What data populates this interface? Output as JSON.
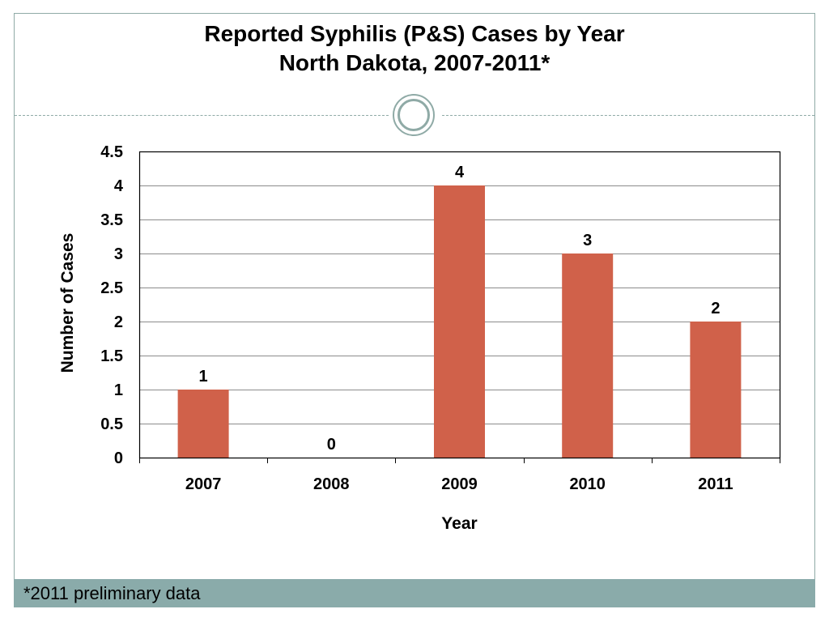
{
  "slide": {
    "title_line1": "Reported Syphilis (P&S) Cases by Year",
    "title_line2": "North Dakota, 2007-2011*",
    "footnote": "*2011 preliminary data"
  },
  "colors": {
    "bar": "#d0614a",
    "frame": "#8faaa6",
    "footer_bar": "#8aabaa"
  },
  "chart_data": {
    "type": "bar",
    "title": "Reported Syphilis (P&S) Cases by Year North Dakota, 2007-2011*",
    "categories": [
      "2007",
      "2008",
      "2009",
      "2010",
      "2011"
    ],
    "values": [
      1,
      0,
      4,
      3,
      2
    ],
    "data_labels": [
      "1",
      "0",
      "4",
      "3",
      "2"
    ],
    "xlabel": "Year",
    "ylabel": "Number of Cases",
    "ylim": [
      0,
      4.5
    ],
    "yticks": [
      "0",
      "0.5",
      "1",
      "1.5",
      "2",
      "2.5",
      "3",
      "3.5",
      "4",
      "4.5"
    ],
    "ytick_values": [
      0,
      0.5,
      1,
      1.5,
      2,
      2.5,
      3,
      3.5,
      4,
      4.5
    ],
    "grid": true,
    "legend": "none"
  }
}
